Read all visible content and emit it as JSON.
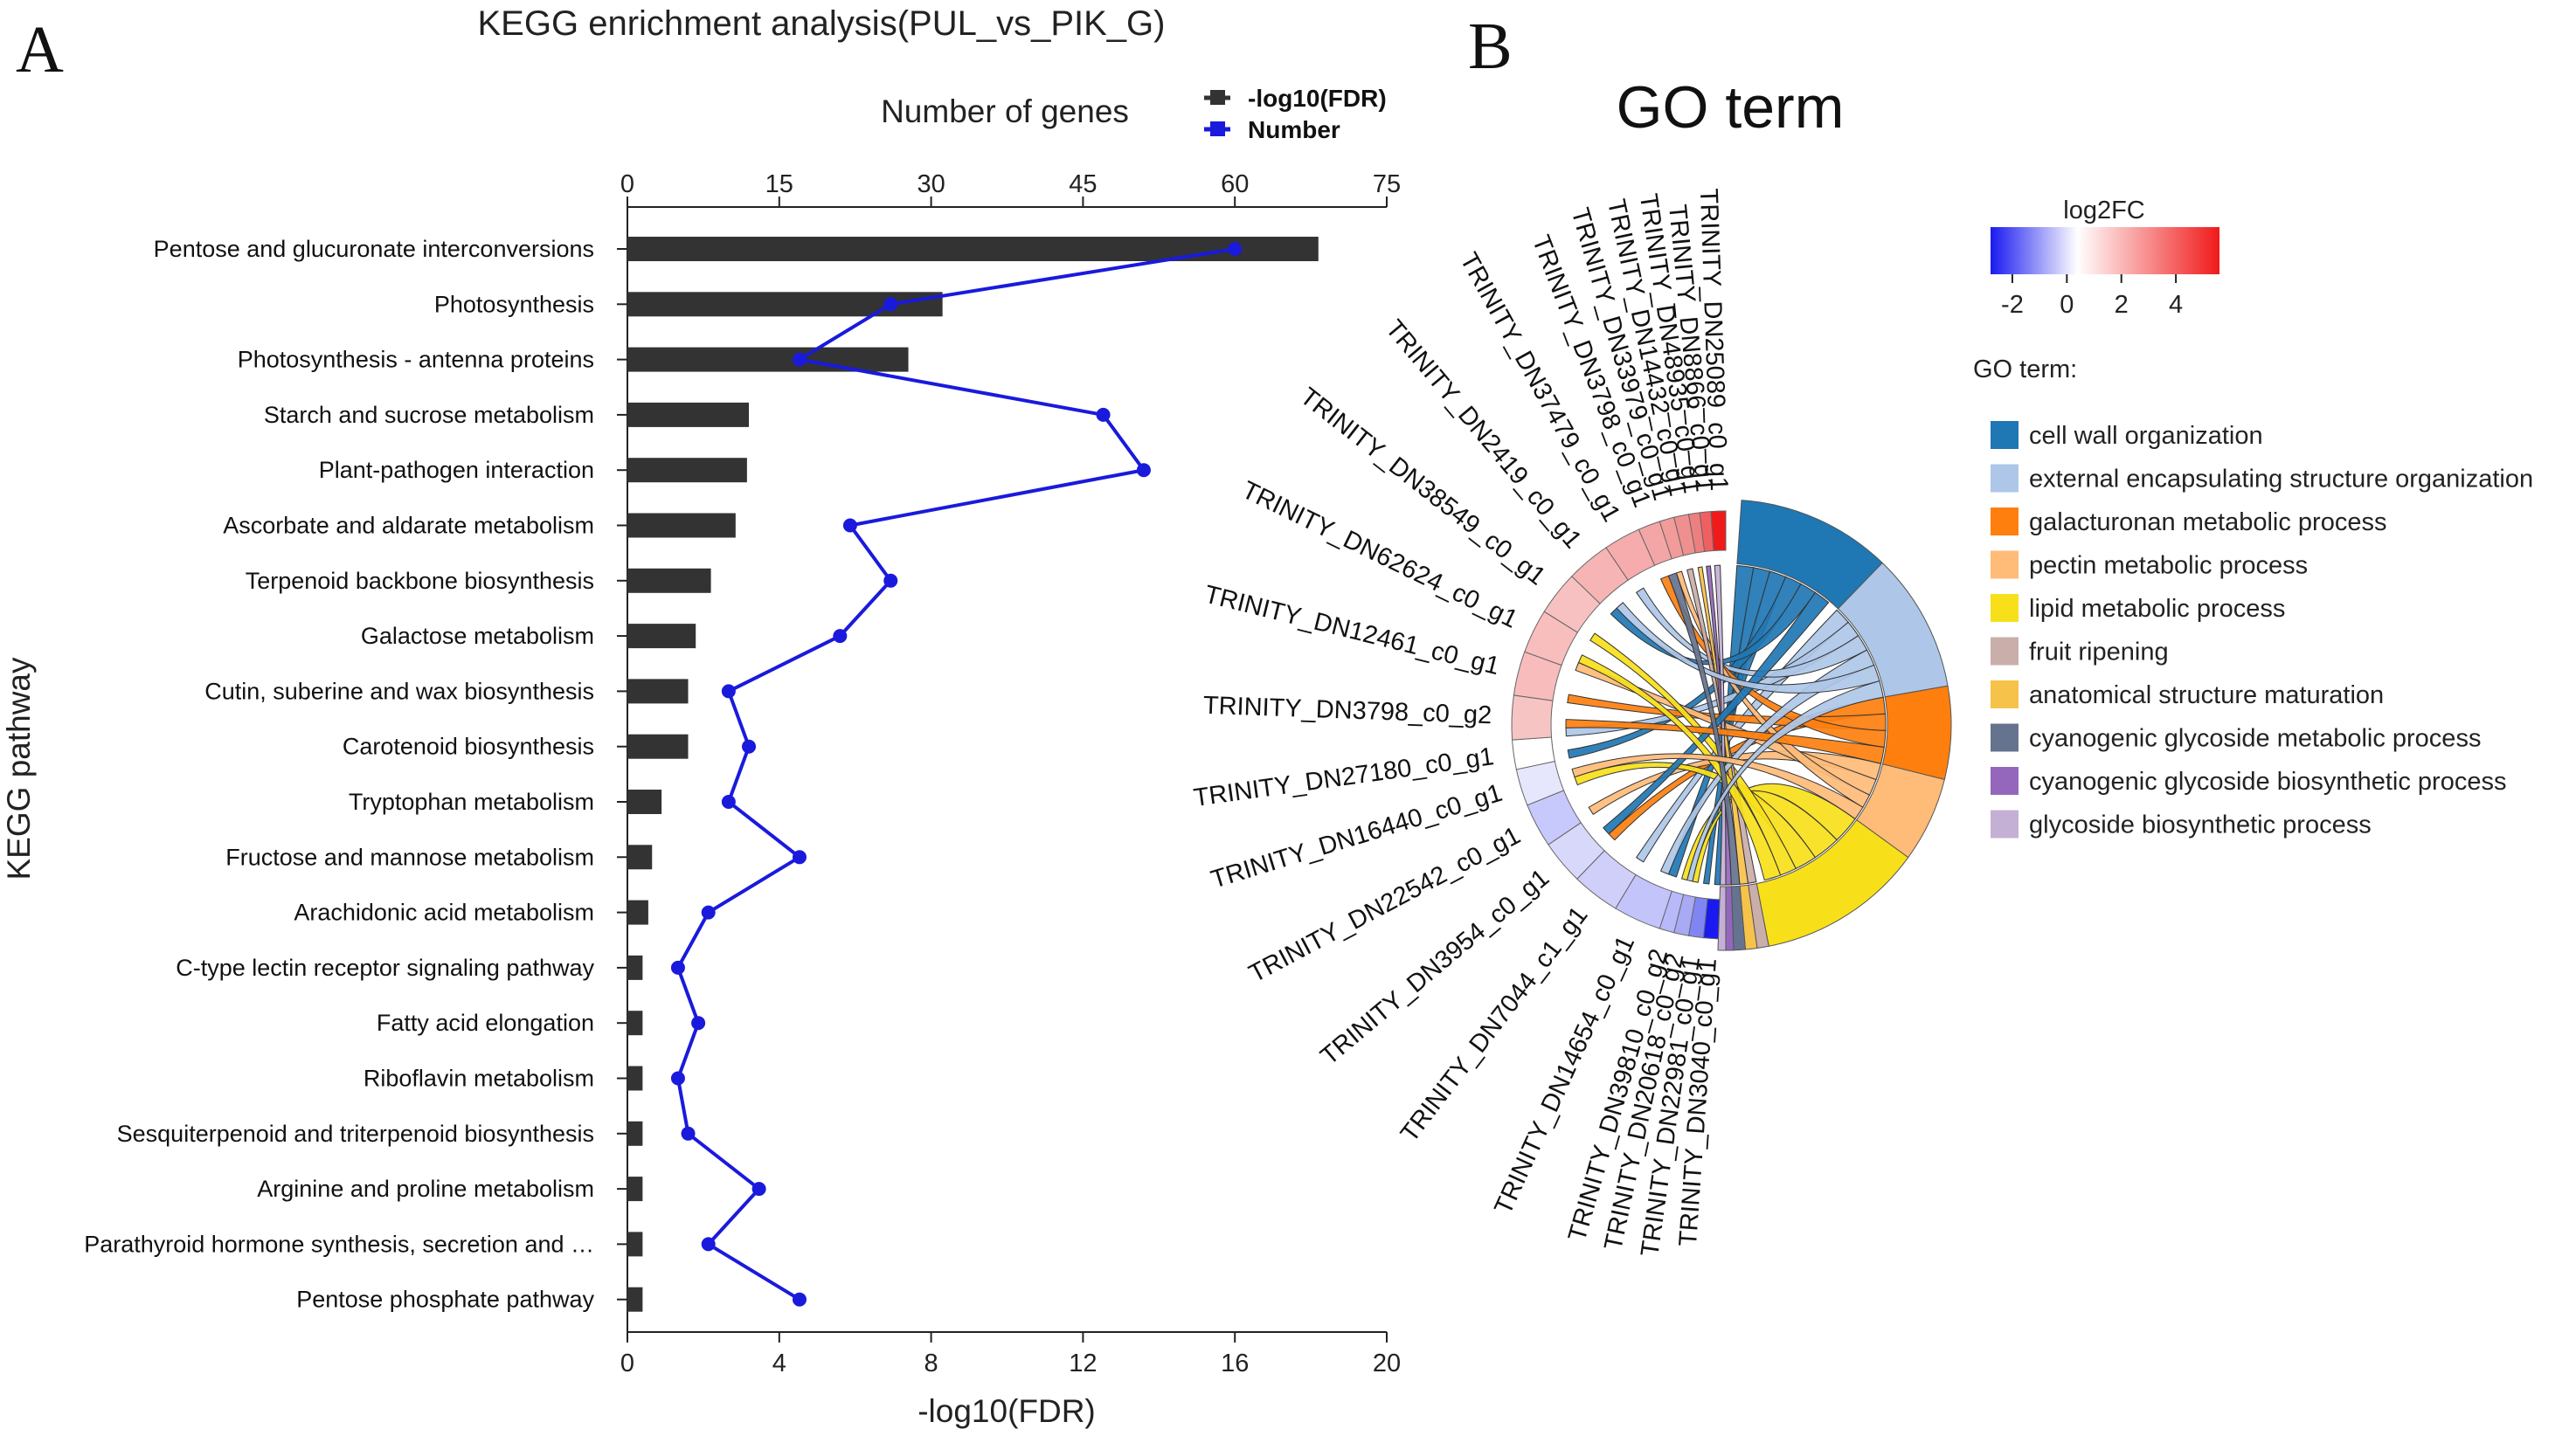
{
  "panel_a": {
    "letter": "A",
    "title": "KEGG enrichment analysis(PUL_vs_PIK_G)",
    "legend": [
      {
        "label": "-log10(FDR)",
        "color": "#333333"
      },
      {
        "label": "Number",
        "color": "#1a1adc"
      }
    ]
  },
  "panel_b": {
    "letter": "B",
    "title": "GO term",
    "colorbar": {
      "title": "log2FC",
      "ticks": [
        "-2",
        "0",
        "2",
        "4"
      ],
      "low": "#1a1af0",
      "mid": "#ffffff",
      "high": "#f01a1a"
    },
    "legend_title": "GO term:"
  },
  "chart_data": [
    {
      "type": "bar",
      "orientation": "horizontal",
      "title": "KEGG enrichment analysis(PUL_vs_PIK_G)",
      "ylabel": "KEGG pathway",
      "xlabel": "-log10(FDR)",
      "xlim": [
        0,
        20
      ],
      "xticks": [
        "0",
        "4",
        "8",
        "12",
        "16",
        "20"
      ],
      "x2label": "Number of genes",
      "x2lim": [
        0,
        75
      ],
      "x2ticks": [
        "0",
        "15",
        "30",
        "45",
        "60",
        "75"
      ],
      "categories": [
        "Pentose and glucuronate interconversions",
        "Photosynthesis",
        "Photosynthesis - antenna proteins",
        "Starch and sucrose metabolism",
        "Plant-pathogen interaction",
        "Ascorbate and aldarate metabolism",
        "Terpenoid backbone biosynthesis",
        "Galactose metabolism",
        "Cutin, suberine and wax biosynthesis",
        "Carotenoid biosynthesis",
        "Tryptophan metabolism",
        "Fructose and mannose metabolism",
        "Arachidonic acid metabolism",
        "C-type lectin receptor signaling pathway",
        "Fatty acid elongation",
        "Riboflavin metabolism",
        "Sesquiterpenoid and triterpenoid biosynthesis",
        "Arginine and proline metabolism",
        "Parathyroid hormone synthesis, secretion and …",
        "Pentose phosphate pathway"
      ],
      "series": [
        {
          "name": "-log10(FDR)",
          "kind": "bar",
          "color": "#333333",
          "values": [
            18.2,
            8.3,
            7.4,
            3.2,
            3.15,
            2.85,
            2.2,
            1.8,
            1.6,
            1.6,
            0.9,
            0.65,
            0.55,
            0.4,
            0.4,
            0.4,
            0.4,
            0.4,
            0.4,
            0.4
          ]
        },
        {
          "name": "Number",
          "kind": "line",
          "axis": "top",
          "color": "#1a1adc",
          "values": [
            60,
            26,
            17,
            47,
            51,
            22,
            26,
            21,
            10,
            12,
            10,
            17,
            8,
            5,
            7,
            5,
            6,
            13,
            8,
            17
          ]
        }
      ]
    },
    {
      "type": "chord",
      "title": "GO term",
      "color_scale": {
        "label": "log2FC",
        "ticks": [
          -2,
          0,
          2,
          4
        ]
      },
      "gene_labels": [
        "TRINITY_DN25089_c0_g1",
        "TRINITY_DN8866_c0_g1",
        "TRINITY_DN48935_c0_g1",
        "TRINITY_DN14432_c0_g1",
        "TRINITY_DN33979_c0_g1",
        "TRINITY_DN3798_c0_g1",
        "TRINITY_DN37479_c0_g1",
        "TRINITY_DN2419_c0_g1",
        "TRINITY_DN38549_c0_g1",
        "TRINITY_DN62624_c0_g1",
        "TRINITY_DN12461_c0_g1",
        "TRINITY_DN3798_c0_g2",
        "TRINITY_DN27180_c0_g1",
        "TRINITY_DN16440_c0_g1",
        "TRINITY_DN22542_c0_g1",
        "TRINITY_DN3954_c0_g1",
        "TRINITY_DN7044_c1_g1",
        "TRINITY_DN14654_c0_g1",
        "TRINITY_DN39810_c0_g2",
        "TRINITY_DN20618_c0_g2",
        "TRINITY_DN22981_c0_g1",
        "TRINITY_DN3040_c0_g1"
      ],
      "go_terms": [
        {
          "name": "cell wall organization",
          "color": "#1f77b4"
        },
        {
          "name": "external encapsulating structure organization",
          "color": "#aec7e8"
        },
        {
          "name": "galacturonan metabolic process",
          "color": "#ff7f0e"
        },
        {
          "name": "pectin metabolic process",
          "color": "#ffbb78"
        },
        {
          "name": "lipid metabolic process",
          "color": "#f7e01a"
        },
        {
          "name": "fruit ripening",
          "color": "#c9aeaa"
        },
        {
          "name": "anatomical structure maturation",
          "color": "#f6c24a"
        },
        {
          "name": "cyanogenic glycoside metabolic process",
          "color": "#66738f"
        },
        {
          "name": "cyanogenic glycoside biosynthetic process",
          "color": "#9467bd"
        },
        {
          "name": "glycoside biosynthetic process",
          "color": "#c5b0d5"
        }
      ]
    }
  ]
}
